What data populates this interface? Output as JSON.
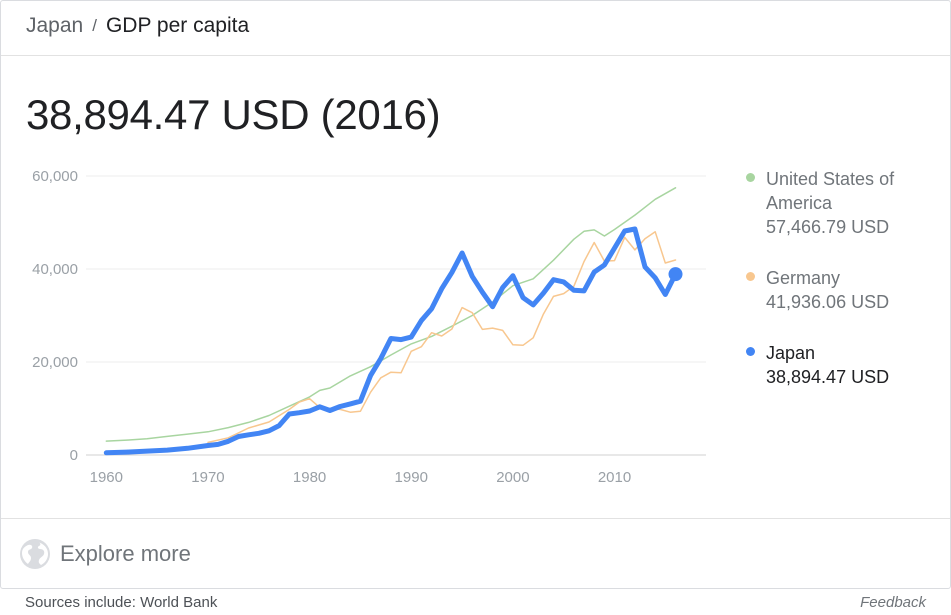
{
  "breadcrumb": {
    "parent": "Japan",
    "separator": "/",
    "current": "GDP per capita"
  },
  "headline": "38,894.47 USD (2016)",
  "chart_data": {
    "type": "line",
    "title": "",
    "xlabel": "",
    "ylabel": "",
    "xlim": [
      1958,
      2019
    ],
    "ylim": [
      0,
      60000
    ],
    "x_ticks": [
      1960,
      1970,
      1980,
      1990,
      2000,
      2010
    ],
    "y_ticks": [
      0,
      20000,
      40000,
      60000
    ],
    "y_tick_labels": [
      "0",
      "20,000",
      "40,000",
      "60,000"
    ],
    "grid": true,
    "legend_position": "right",
    "series": [
      {
        "name": "United States of America",
        "color": "#a8d5a0",
        "emphasis": false,
        "points": [
          [
            1960,
            3000
          ],
          [
            1962,
            3200
          ],
          [
            1964,
            3500
          ],
          [
            1966,
            4000
          ],
          [
            1968,
            4500
          ],
          [
            1970,
            5000
          ],
          [
            1972,
            5900
          ],
          [
            1974,
            7000
          ],
          [
            1976,
            8500
          ],
          [
            1978,
            10500
          ],
          [
            1980,
            12500
          ],
          [
            1981,
            13900
          ],
          [
            1982,
            14400
          ],
          [
            1984,
            17000
          ],
          [
            1986,
            19000
          ],
          [
            1988,
            21500
          ],
          [
            1990,
            23900
          ],
          [
            1992,
            25500
          ],
          [
            1994,
            27700
          ],
          [
            1996,
            30000
          ],
          [
            1998,
            32900
          ],
          [
            2000,
            36400
          ],
          [
            2002,
            37900
          ],
          [
            2004,
            41900
          ],
          [
            2006,
            46400
          ],
          [
            2007,
            48100
          ],
          [
            2008,
            48400
          ],
          [
            2009,
            47100
          ],
          [
            2010,
            48500
          ],
          [
            2012,
            51600
          ],
          [
            2014,
            55000
          ],
          [
            2016,
            57466.79
          ]
        ]
      },
      {
        "name": "Germany",
        "color": "#f8c78f",
        "emphasis": false,
        "points": [
          [
            1970,
            2700
          ],
          [
            1972,
            3700
          ],
          [
            1974,
            5800
          ],
          [
            1976,
            7100
          ],
          [
            1978,
            9800
          ],
          [
            1979,
            11400
          ],
          [
            1980,
            12100
          ],
          [
            1981,
            10200
          ],
          [
            1982,
            9900
          ],
          [
            1983,
            9800
          ],
          [
            1984,
            9200
          ],
          [
            1985,
            9400
          ],
          [
            1986,
            13500
          ],
          [
            1987,
            16600
          ],
          [
            1988,
            17800
          ],
          [
            1989,
            17700
          ],
          [
            1990,
            22300
          ],
          [
            1991,
            23300
          ],
          [
            1992,
            26300
          ],
          [
            1993,
            25600
          ],
          [
            1994,
            27100
          ],
          [
            1995,
            31700
          ],
          [
            1996,
            30600
          ],
          [
            1997,
            27000
          ],
          [
            1998,
            27300
          ],
          [
            1999,
            26800
          ],
          [
            2000,
            23700
          ],
          [
            2001,
            23600
          ],
          [
            2002,
            25200
          ],
          [
            2003,
            30300
          ],
          [
            2004,
            34100
          ],
          [
            2005,
            34700
          ],
          [
            2006,
            36300
          ],
          [
            2007,
            41600
          ],
          [
            2008,
            45700
          ],
          [
            2009,
            41700
          ],
          [
            2010,
            41800
          ],
          [
            2011,
            46800
          ],
          [
            2012,
            44100
          ],
          [
            2013,
            46500
          ],
          [
            2014,
            48000
          ],
          [
            2015,
            41300
          ],
          [
            2016,
            41936.06
          ]
        ]
      },
      {
        "name": "Japan",
        "color": "#4285f4",
        "emphasis": true,
        "points": [
          [
            1960,
            480
          ],
          [
            1962,
            630
          ],
          [
            1964,
            840
          ],
          [
            1966,
            1060
          ],
          [
            1968,
            1450
          ],
          [
            1970,
            2040
          ],
          [
            1971,
            2270
          ],
          [
            1972,
            2950
          ],
          [
            1973,
            3980
          ],
          [
            1974,
            4350
          ],
          [
            1975,
            4660
          ],
          [
            1976,
            5200
          ],
          [
            1977,
            6330
          ],
          [
            1978,
            8820
          ],
          [
            1979,
            9100
          ],
          [
            1980,
            9460
          ],
          [
            1981,
            10360
          ],
          [
            1982,
            9580
          ],
          [
            1983,
            10420
          ],
          [
            1984,
            10980
          ],
          [
            1985,
            11580
          ],
          [
            1986,
            17110
          ],
          [
            1987,
            20750
          ],
          [
            1988,
            25050
          ],
          [
            1989,
            24810
          ],
          [
            1990,
            25360
          ],
          [
            1991,
            28920
          ],
          [
            1992,
            31460
          ],
          [
            1993,
            35770
          ],
          [
            1994,
            39270
          ],
          [
            1995,
            43440
          ],
          [
            1996,
            38440
          ],
          [
            1997,
            35020
          ],
          [
            1998,
            31900
          ],
          [
            1999,
            36030
          ],
          [
            2000,
            38530
          ],
          [
            2001,
            33850
          ],
          [
            2002,
            32290
          ],
          [
            2003,
            34810
          ],
          [
            2004,
            37690
          ],
          [
            2005,
            37220
          ],
          [
            2006,
            35430
          ],
          [
            2007,
            35280
          ],
          [
            2008,
            39340
          ],
          [
            2009,
            40850
          ],
          [
            2010,
            44500
          ],
          [
            2011,
            48170
          ],
          [
            2012,
            48600
          ],
          [
            2013,
            40450
          ],
          [
            2014,
            38110
          ],
          [
            2015,
            34520
          ],
          [
            2016,
            38894.47
          ]
        ]
      }
    ]
  },
  "legend": [
    {
      "name": "United States of America",
      "value": "57,466.79 USD",
      "color": "#a8d5a0"
    },
    {
      "name": "Germany",
      "value": "41,936.06 USD",
      "color": "#f8c78f"
    },
    {
      "name": "Japan",
      "value": "38,894.47 USD",
      "color": "#4285f4"
    }
  ],
  "explore": {
    "label": "Explore more",
    "icon": "globe-icon"
  },
  "footer": {
    "sources": "Sources include: World Bank",
    "feedback": "Feedback"
  }
}
